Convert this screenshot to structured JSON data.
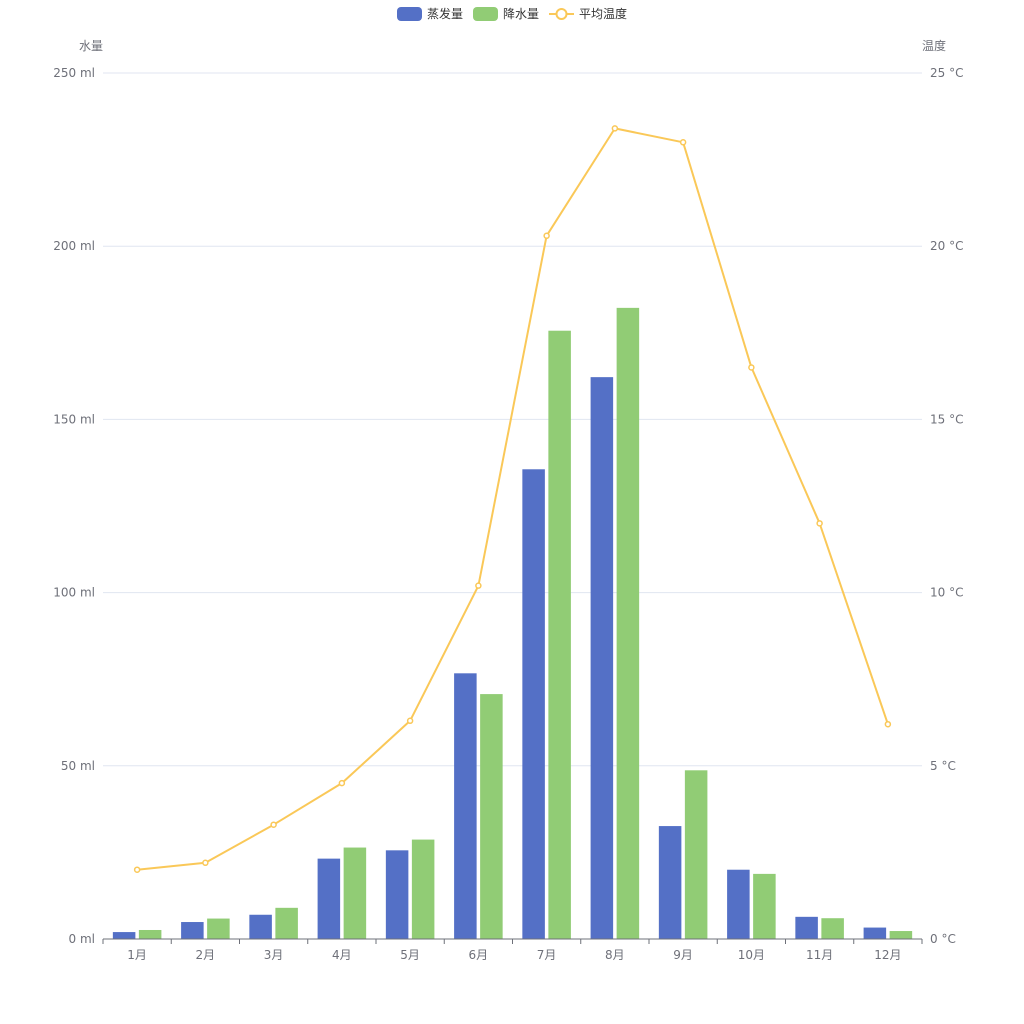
{
  "chart_data": {
    "type": "bar",
    "categories": [
      "1月",
      "2月",
      "3月",
      "4月",
      "5月",
      "6月",
      "7月",
      "8月",
      "9月",
      "10月",
      "11月",
      "12月"
    ],
    "series": [
      {
        "name": "蒸发量",
        "type": "bar",
        "axis": "left",
        "color": "#5470c6",
        "values": [
          2.0,
          4.9,
          7.0,
          23.2,
          25.6,
          76.7,
          135.6,
          162.2,
          32.6,
          20.0,
          6.4,
          3.3
        ]
      },
      {
        "name": "降水量",
        "type": "bar",
        "axis": "left",
        "color": "#91cc75",
        "values": [
          2.6,
          5.9,
          9.0,
          26.4,
          28.7,
          70.7,
          175.6,
          182.2,
          48.7,
          18.8,
          6.0,
          2.3
        ]
      },
      {
        "name": "平均温度",
        "type": "line",
        "axis": "right",
        "color": "#fac858",
        "values": [
          2.0,
          2.2,
          3.3,
          4.5,
          6.3,
          10.2,
          20.3,
          23.4,
          23.0,
          16.5,
          12.0,
          6.2
        ]
      }
    ],
    "y_left": {
      "name": "水量",
      "min": 0,
      "max": 250,
      "interval": 50,
      "unit": " ml"
    },
    "y_right": {
      "name": "温度",
      "min": 0,
      "max": 25,
      "interval": 5,
      "unit": " °C"
    },
    "legend": {
      "placement": "top-center",
      "items": [
        "蒸发量",
        "降水量",
        "平均温度"
      ]
    },
    "grid": true
  }
}
